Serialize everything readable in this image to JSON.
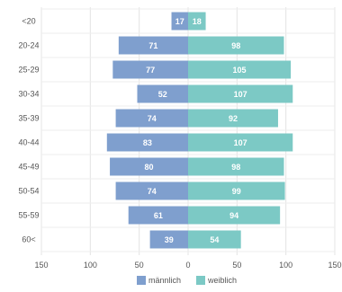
{
  "chart_data": {
    "type": "bar",
    "orientation": "horizontal-diverging",
    "categories": [
      "<20",
      "20-24",
      "25-29",
      "30-34",
      "35-39",
      "40-44",
      "45-49",
      "50-54",
      "55-59",
      "60<"
    ],
    "series": [
      {
        "name": "männlich",
        "color": "#7f9fce",
        "side": "left",
        "values": [
          17,
          71,
          77,
          52,
          74,
          83,
          80,
          74,
          61,
          39
        ]
      },
      {
        "name": "weiblich",
        "color": "#7cc9c5",
        "side": "right",
        "values": [
          18,
          98,
          105,
          107,
          92,
          107,
          98,
          99,
          94,
          54
        ]
      }
    ],
    "x_ticks": [
      "150",
      "100",
      "50",
      "0",
      "50",
      "100",
      "150"
    ],
    "xlim": [
      -150,
      150
    ],
    "grid": "vertical",
    "legend": "bottom-center",
    "title": "",
    "xlabel": "",
    "ylabel": ""
  }
}
